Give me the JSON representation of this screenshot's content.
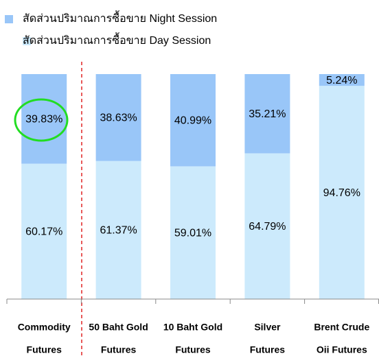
{
  "chart_data": {
    "type": "stacked_bar",
    "categories": [
      [
        "Commodity",
        "Futures"
      ],
      [
        "50 Baht Gold",
        "Futures"
      ],
      [
        "10 Baht Gold",
        "Futures"
      ],
      [
        "Silver",
        "Futures"
      ],
      [
        "Brent Crude",
        "Oii Futures"
      ]
    ],
    "series": [
      {
        "name": "สัดส่วนปริมาณการซื้อขาย Day Session",
        "color": "#cceafc",
        "values": [
          60.17,
          61.37,
          59.01,
          64.79,
          94.76
        ],
        "value_labels": [
          "60.17%",
          "61.37%",
          "59.01%",
          "64.79%",
          "94.76%"
        ]
      },
      {
        "name": "สัดส่วนปริมาณการซื้อขาย Night Session",
        "color": "#99c6f8",
        "values": [
          39.83,
          38.63,
          40.99,
          35.21,
          5.24
        ],
        "value_labels": [
          "39.83%",
          "38.63%",
          "40.99%",
          "35.21%",
          "5.24%"
        ]
      }
    ],
    "ylim": [
      0,
      100
    ]
  }
}
